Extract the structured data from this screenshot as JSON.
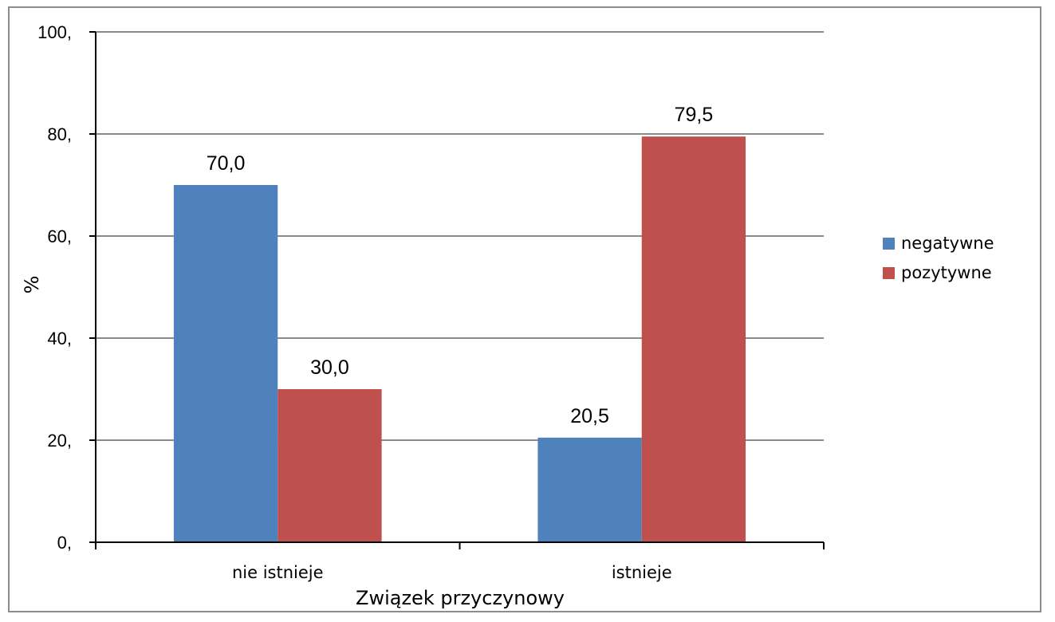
{
  "chart_data": {
    "type": "bar",
    "categories": [
      "nie istnieje",
      "istnieje"
    ],
    "series": [
      {
        "name": "negatywne",
        "values": [
          70.0,
          20.5
        ],
        "labels": [
          "70,0",
          "20,5"
        ],
        "color": "#4F81BD"
      },
      {
        "name": "pozytywne",
        "values": [
          30.0,
          79.5
        ],
        "labels": [
          "30,0",
          "79,5"
        ],
        "color": "#C0504D"
      }
    ],
    "xlabel": "Związek przyczynowy",
    "ylabel": "%",
    "ylim": [
      0,
      100
    ],
    "yticks": [
      0,
      20,
      40,
      60,
      80,
      100
    ],
    "ytick_labels": [
      "0,",
      "20,",
      "40,",
      "60,",
      "80,",
      "100,"
    ],
    "grid": true,
    "legend_position": "right",
    "gridline_color": "#8c8c8c"
  }
}
